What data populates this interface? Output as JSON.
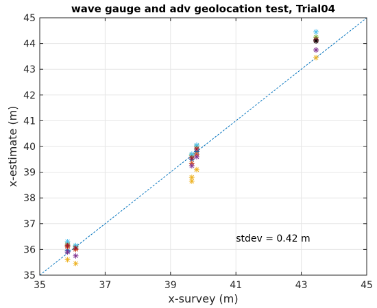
{
  "chart_data": {
    "type": "scatter",
    "title": "wave gauge and adv geolocation test, Trial04",
    "xlabel": "x-survey (m)",
    "ylabel": "x-estimate (m)",
    "xlim": [
      35,
      45
    ],
    "ylim": [
      35,
      45
    ],
    "xticks": [
      35,
      37,
      39,
      41,
      43,
      45
    ],
    "yticks": [
      35,
      36,
      37,
      38,
      39,
      40,
      41,
      42,
      43,
      44,
      45
    ],
    "grid": true,
    "annotation": "stdev = 0.42 m",
    "marker": "asterisk",
    "reference_line": {
      "x": [
        35,
        45
      ],
      "y": [
        35,
        45
      ],
      "style": "dashed",
      "color": "#0072BD"
    },
    "series": [
      {
        "color": "#0072BD",
        "points": [
          [
            35.85,
            35.95
          ],
          [
            36.1,
            36.1
          ],
          [
            39.65,
            39.5
          ],
          [
            39.8,
            39.8
          ],
          [
            43.45,
            44.1
          ]
        ]
      },
      {
        "color": "#D95319",
        "points": [
          [
            35.85,
            36.1
          ],
          [
            36.1,
            36.0
          ],
          [
            39.65,
            39.35
          ],
          [
            39.8,
            39.7
          ],
          [
            43.45,
            44.1
          ]
        ]
      },
      {
        "color": "#EDB120",
        "points": [
          [
            35.85,
            35.6
          ],
          [
            36.1,
            35.45
          ],
          [
            39.65,
            38.65
          ],
          [
            39.65,
            38.8
          ],
          [
            39.8,
            39.1
          ],
          [
            43.45,
            43.45
          ]
        ]
      },
      {
        "color": "#7E2F8E",
        "points": [
          [
            35.85,
            35.9
          ],
          [
            36.1,
            35.75
          ],
          [
            39.65,
            39.25
          ],
          [
            39.8,
            39.6
          ],
          [
            43.45,
            43.75
          ]
        ]
      },
      {
        "color": "#77AC30",
        "points": [
          [
            35.85,
            36.2
          ],
          [
            36.1,
            36.1
          ],
          [
            39.65,
            39.65
          ],
          [
            39.8,
            40.0
          ],
          [
            43.45,
            44.25
          ]
        ]
      },
      {
        "color": "#4DBEEE",
        "points": [
          [
            35.85,
            36.3
          ],
          [
            36.1,
            36.15
          ],
          [
            39.65,
            39.7
          ],
          [
            39.8,
            40.05
          ],
          [
            43.45,
            44.45
          ]
        ]
      },
      {
        "color": "#A2142F",
        "points": [
          [
            35.85,
            36.15
          ],
          [
            36.1,
            36.05
          ],
          [
            39.65,
            39.55
          ],
          [
            39.8,
            39.9
          ],
          [
            43.45,
            44.15
          ]
        ]
      },
      {
        "color": "#000000",
        "points": [
          [
            43.45,
            44.1
          ]
        ]
      }
    ]
  }
}
